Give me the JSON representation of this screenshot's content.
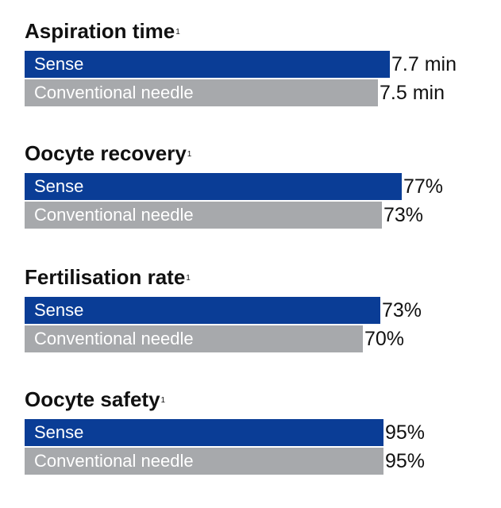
{
  "chart_data": [
    {
      "type": "bar",
      "orientation": "horizontal",
      "title": "Aspiration time",
      "title_superscript": "1",
      "categories": [
        "Sense",
        "Conventional needle"
      ],
      "values": [
        7.7,
        7.5
      ],
      "value_labels": [
        "7.7 min",
        "7.5 min"
      ],
      "colors": [
        "#0a3d96",
        "#a7a9ac"
      ]
    },
    {
      "type": "bar",
      "orientation": "horizontal",
      "title": "Oocyte recovery",
      "title_superscript": "1",
      "categories": [
        "Sense",
        "Conventional needle"
      ],
      "values": [
        77,
        73
      ],
      "value_labels": [
        "77%",
        "73%"
      ],
      "colors": [
        "#0a3d96",
        "#a7a9ac"
      ]
    },
    {
      "type": "bar",
      "orientation": "horizontal",
      "title": "Fertilisation rate",
      "title_superscript": "1",
      "categories": [
        "Sense",
        "Conventional needle"
      ],
      "values": [
        73,
        70
      ],
      "value_labels": [
        "73%",
        "70%"
      ],
      "colors": [
        "#0a3d96",
        "#a7a9ac"
      ]
    },
    {
      "type": "bar",
      "orientation": "horizontal",
      "title": "Oocyte safety",
      "title_superscript": "1",
      "categories": [
        "Sense",
        "Conventional needle"
      ],
      "values": [
        95,
        95
      ],
      "value_labels": [
        "95%",
        "95%"
      ],
      "colors": [
        "#0a3d96",
        "#a7a9ac"
      ]
    }
  ]
}
